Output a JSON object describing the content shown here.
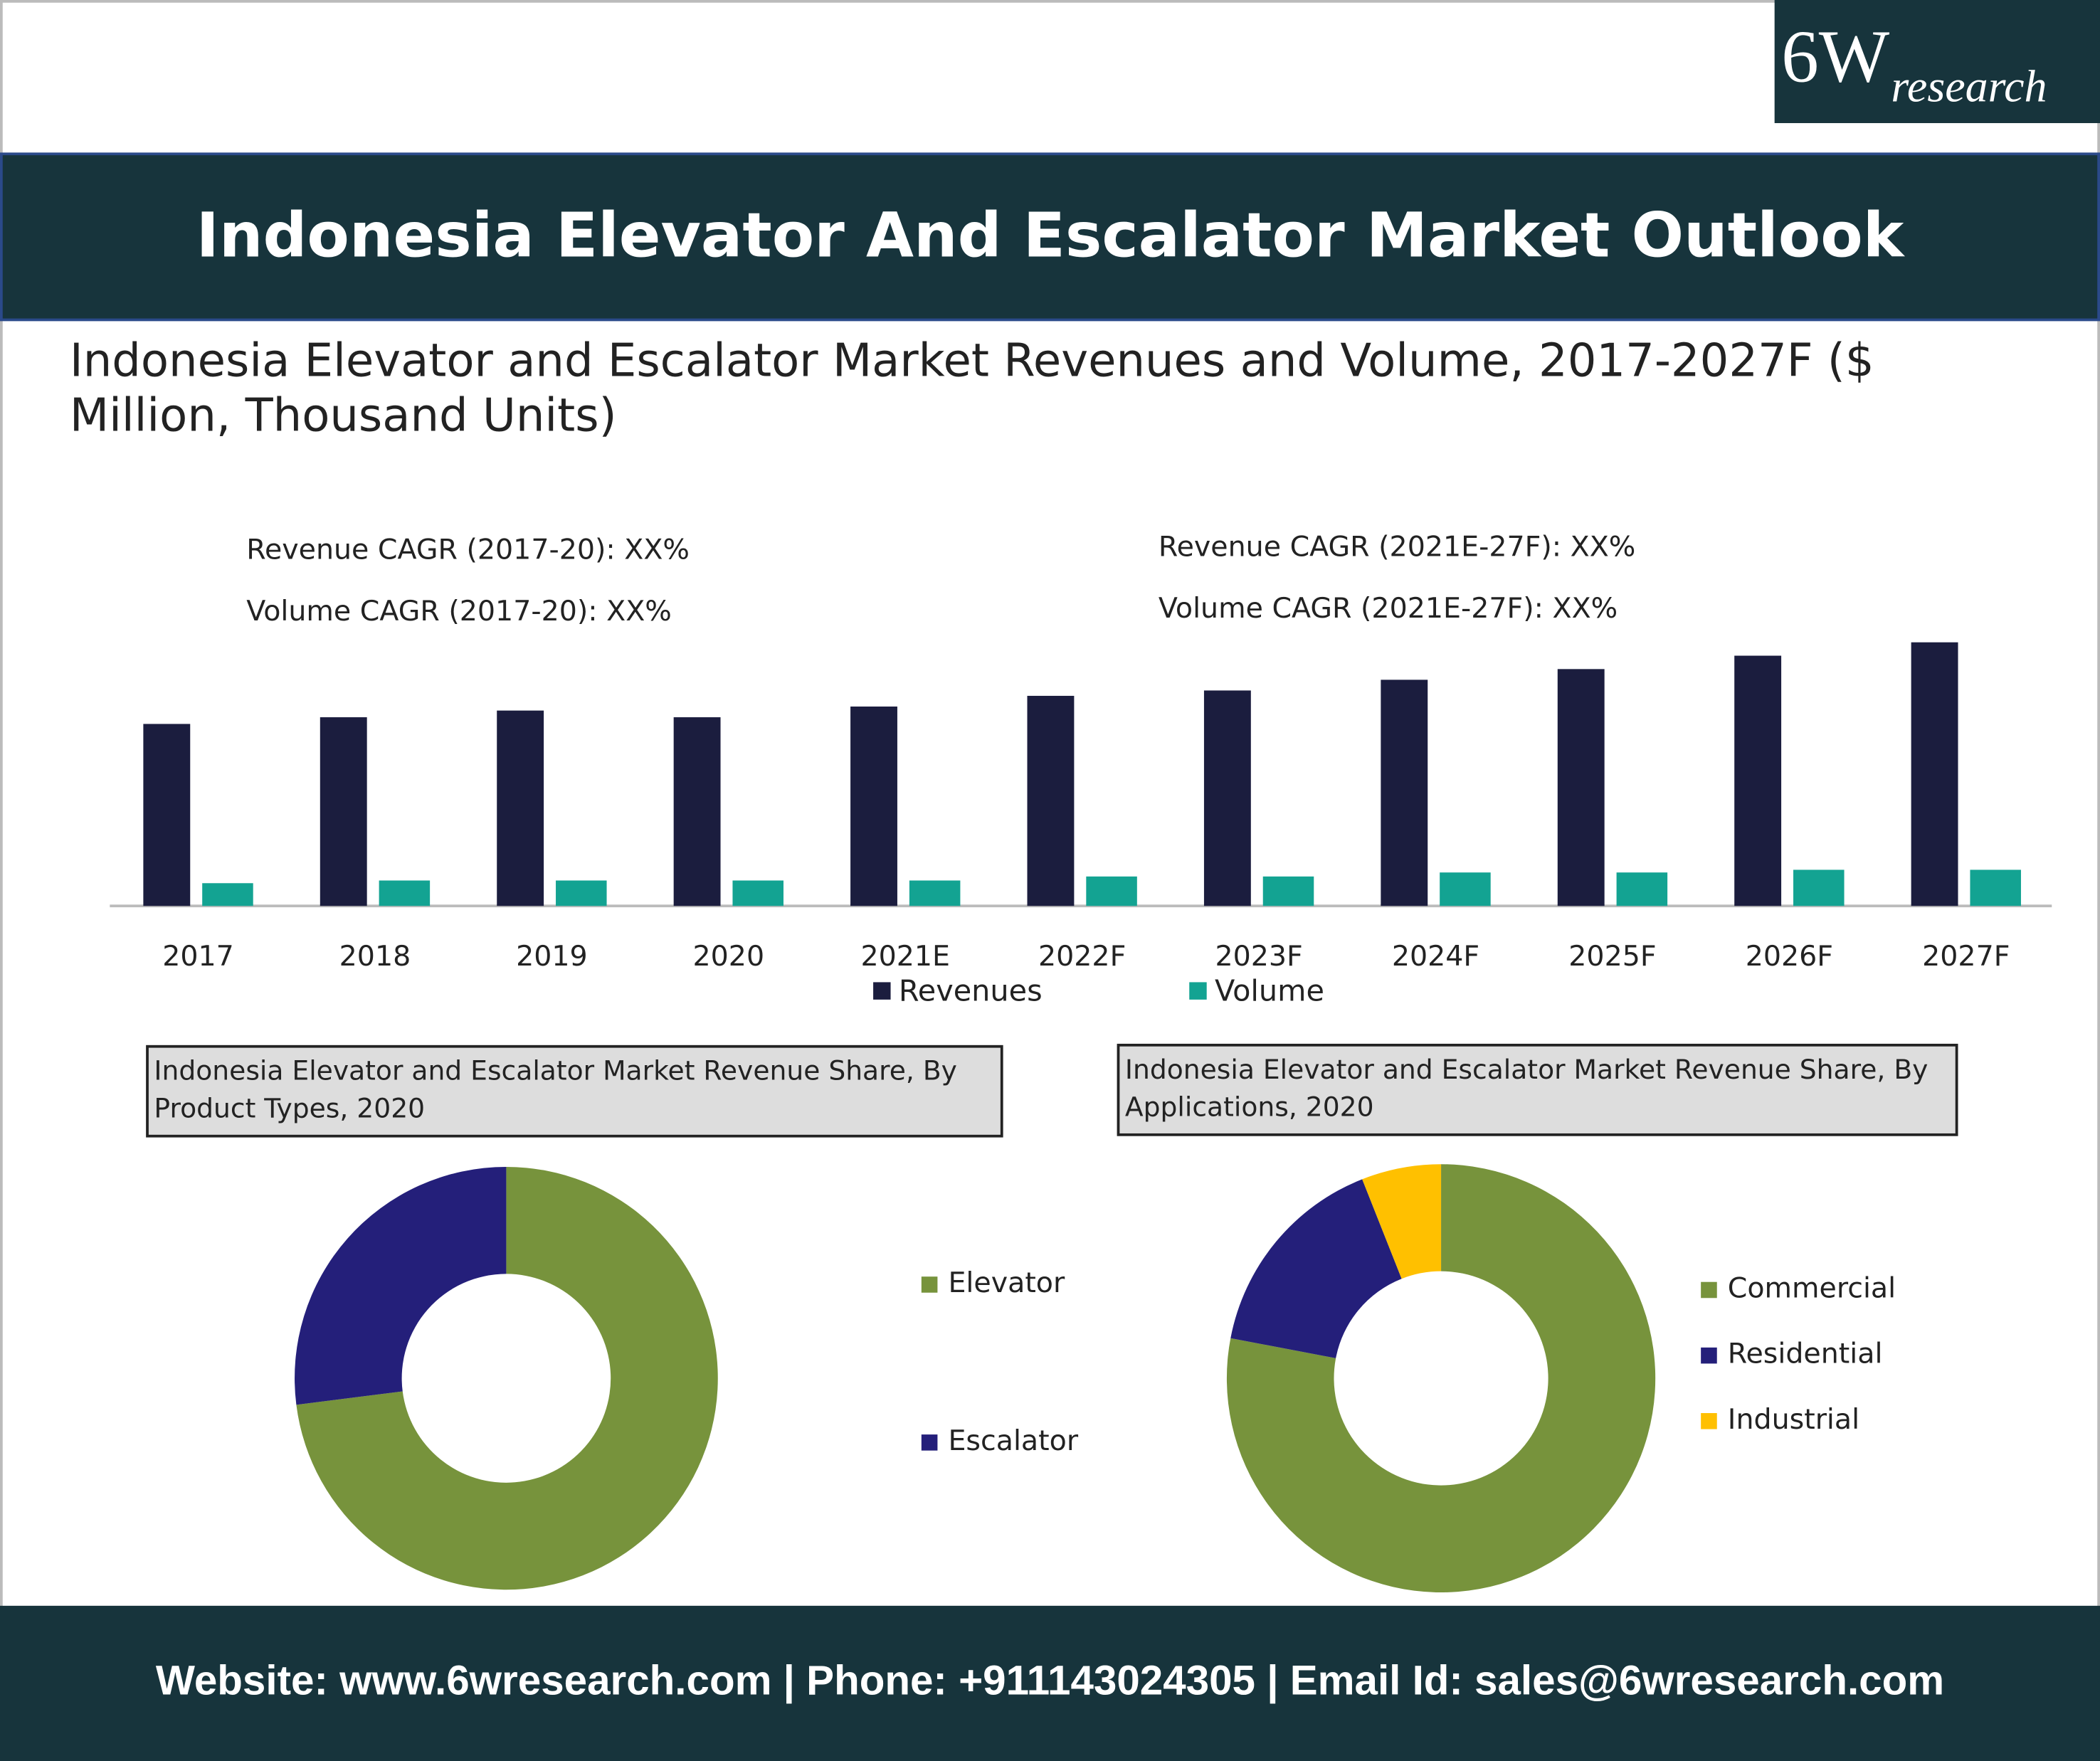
{
  "logo": {
    "mark": "6W",
    "word": "research"
  },
  "header": {
    "title": "Indonesia Elevator And Escalator Market Outlook"
  },
  "footer": {
    "text": "Website: www.6wresearch.com | Phone: +911143024305 | Email Id: sales@6wresearch.com"
  },
  "chart_data": [
    {
      "type": "bar",
      "title": "Indonesia Elevator and Escalator Market Revenues and Volume, 2017-2027F ($ Million, Thousand Units)",
      "annotations": [
        "Revenue CAGR (2017-20): XX%",
        "Volume CAGR (2017-20): XX%",
        "Revenue CAGR (2021E-27F): XX%",
        "Volume CAGR (2021E-27F): XX%"
      ],
      "categories": [
        "2017",
        "2018",
        "2019",
        "2020",
        "2021E",
        "2022F",
        "2023F",
        "2024F",
        "2025F",
        "2026F",
        "2027F"
      ],
      "series": [
        {
          "name": "Revenues",
          "color": "#1b1d3e",
          "values": [
            136,
            141,
            146,
            141,
            149,
            157,
            161,
            169,
            177,
            187,
            197
          ]
        },
        {
          "name": "Volume",
          "color": "#13a392",
          "values": [
            17,
            19,
            19,
            19,
            19,
            22,
            22,
            25,
            25,
            27,
            27
          ]
        }
      ]
    },
    {
      "type": "pie",
      "title": "Indonesia Elevator and Escalator Market Revenue Share, By Product Types, 2020",
      "categories": [
        "Elevator",
        "Escalator"
      ],
      "colors": [
        "#77933c",
        "#241f7a"
      ],
      "values": [
        73,
        27
      ]
    },
    {
      "type": "pie",
      "title": "Indonesia Elevator and Escalator Market Revenue Share, By Applications, 2020",
      "categories": [
        "Commercial",
        "Residential",
        "Industrial"
      ],
      "colors": [
        "#77933c",
        "#241f7a",
        "#ffc000"
      ],
      "values": [
        78,
        16,
        6
      ]
    }
  ]
}
